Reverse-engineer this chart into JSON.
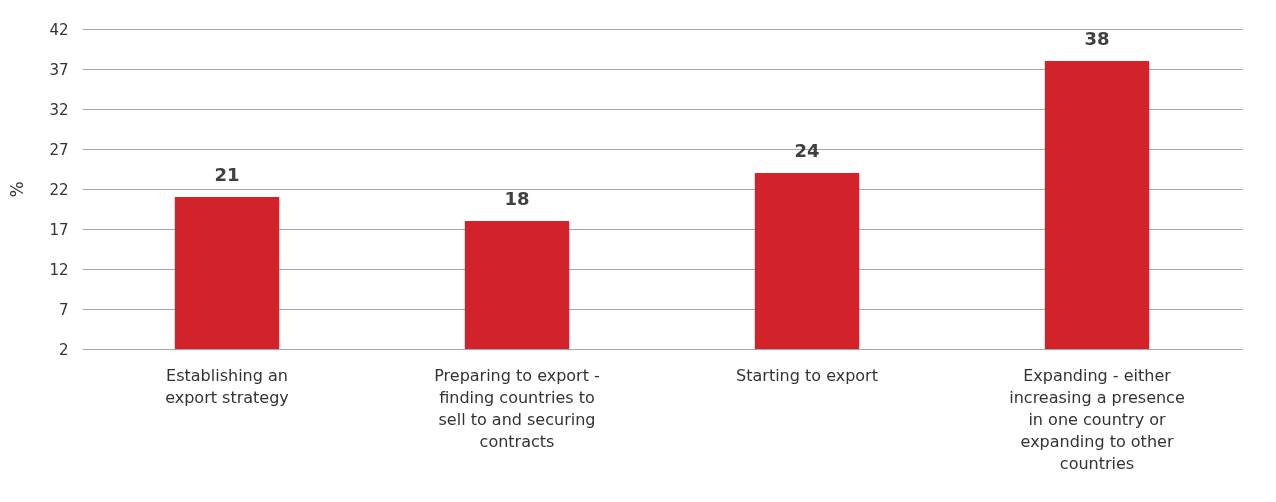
{
  "chart_data": {
    "type": "bar",
    "ylabel": "%",
    "categories": [
      "Establishing an export strategy",
      "Preparing to export - finding countries to sell to and securing contracts",
      "Starting to export",
      "Expanding - either increasing a presence in one country or expanding to other countries"
    ],
    "values": [
      21,
      18,
      24,
      38
    ],
    "color": "#d2232a",
    "data_labels": true,
    "ylim": [
      2,
      42
    ],
    "yticks": [
      2,
      7,
      12,
      17,
      22,
      27,
      32,
      37,
      42
    ],
    "grid": "y"
  }
}
